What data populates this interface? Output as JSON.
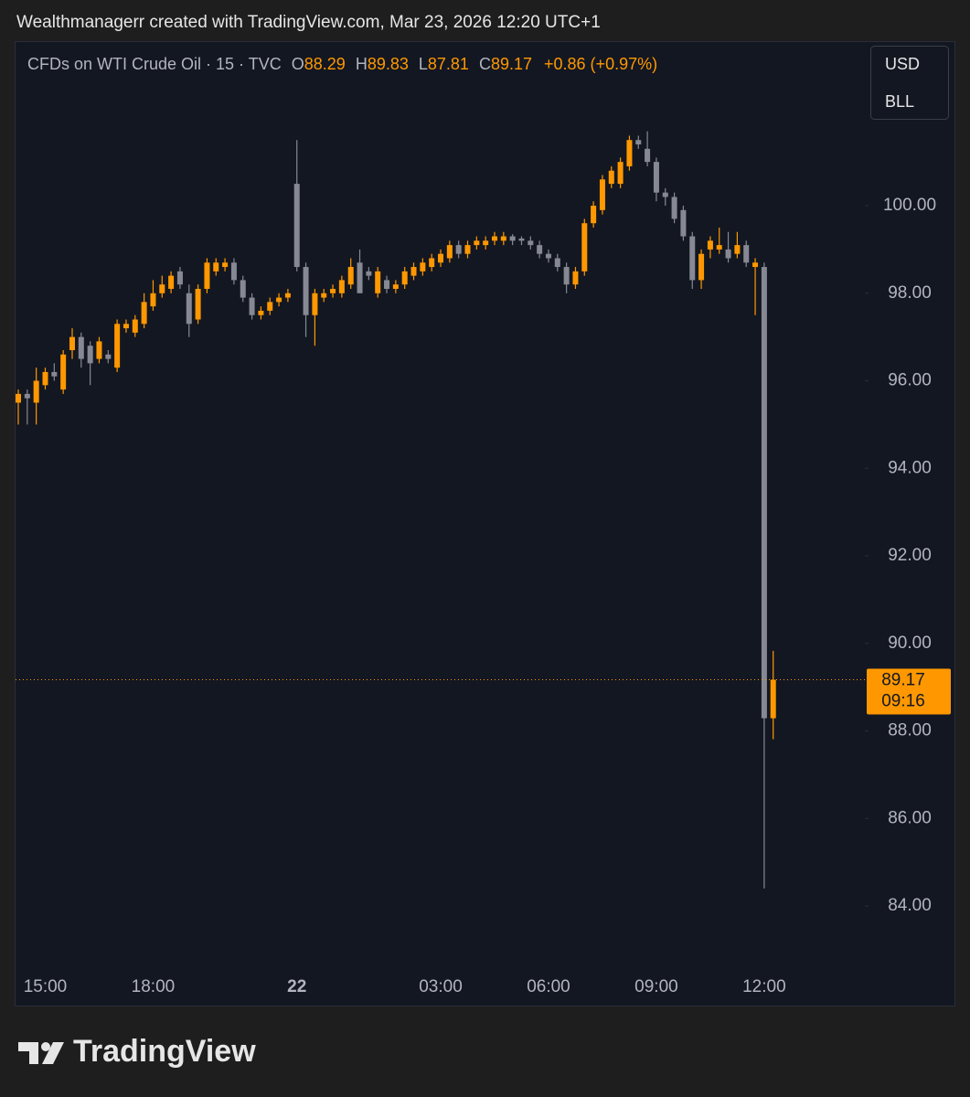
{
  "chart_data": {
    "type": "candlestick",
    "title": "Wealthmanagerr created with TradingView.com, Mar 23, 2026 12:20 UTC+1",
    "symbol": "CFDs on WTI Crude Oil · 15 · TVC",
    "legend_labels": [
      "O",
      "H",
      "L",
      "C"
    ],
    "change": "+0.86 (+0.97%)",
    "currency": "USD",
    "unit": "BLL",
    "countdown": "09:16",
    "up_color": "#ff9800",
    "down_color": "#868993",
    "ylim": [
      82.56,
      103.76
    ],
    "yticks": [
      {
        "value": 84,
        "label": "84.00"
      },
      {
        "value": 86,
        "label": "86.00"
      },
      {
        "value": 88,
        "label": "88.00"
      },
      {
        "value": 90,
        "label": "90.00"
      },
      {
        "value": 92,
        "label": "92.00"
      },
      {
        "value": 94,
        "label": "94.00"
      },
      {
        "value": 96,
        "label": "96.00"
      },
      {
        "value": 98,
        "label": "98.00"
      },
      {
        "value": 100,
        "label": "100.00"
      }
    ],
    "categories": [
      null,
      null,
      null,
      "15:00",
      null,
      null,
      null,
      null,
      null,
      null,
      null,
      null,
      null,
      null,
      null,
      "18:00",
      null,
      null,
      null,
      null,
      null,
      null,
      null,
      null,
      null,
      null,
      null,
      null,
      null,
      null,
      null,
      "22",
      null,
      null,
      null,
      null,
      null,
      null,
      null,
      null,
      null,
      null,
      null,
      null,
      null,
      null,
      null,
      "03:00",
      null,
      null,
      null,
      null,
      null,
      null,
      null,
      null,
      null,
      null,
      null,
      "06:00",
      null,
      null,
      null,
      null,
      null,
      null,
      null,
      null,
      null,
      null,
      null,
      "09:00",
      null,
      null,
      null,
      null,
      null,
      null,
      null,
      null,
      null,
      null,
      null,
      "12:00",
      null
    ],
    "open": [
      95.5,
      95.7,
      95.5,
      95.9,
      96.2,
      95.8,
      96.7,
      97.0,
      96.8,
      96.5,
      96.6,
      96.3,
      97.2,
      97.1,
      97.3,
      97.7,
      98.0,
      98.1,
      98.5,
      98.0,
      97.4,
      98.1,
      98.5,
      98.6,
      98.7,
      98.3,
      97.9,
      97.5,
      97.6,
      97.8,
      97.9,
      100.5,
      98.6,
      97.5,
      97.9,
      98.0,
      98.0,
      98.2,
      98.7,
      98.5,
      98.0,
      98.3,
      98.1,
      98.2,
      98.4,
      98.5,
      98.6,
      98.7,
      98.8,
      99.1,
      98.9,
      99.1,
      99.1,
      99.2,
      99.2,
      99.3,
      99.25,
      99.2,
      99.1,
      98.9,
      98.8,
      98.6,
      98.2,
      98.5,
      99.6,
      99.9,
      100.5,
      100.5,
      100.9,
      101.5,
      101.3,
      101.0,
      100.3,
      100.2,
      99.9,
      99.3,
      98.3,
      99.0,
      99.0,
      99.0,
      98.9,
      99.1,
      98.6,
      98.6,
      88.29
    ],
    "high": [
      95.8,
      95.8,
      96.3,
      96.3,
      96.4,
      96.7,
      97.2,
      97.1,
      96.9,
      97.0,
      96.7,
      97.4,
      97.4,
      97.5,
      98.0,
      98.3,
      98.4,
      98.5,
      98.6,
      98.2,
      98.2,
      98.8,
      98.8,
      98.8,
      98.8,
      98.4,
      98.0,
      97.7,
      97.9,
      98.0,
      98.1,
      101.5,
      98.7,
      98.1,
      98.1,
      98.2,
      98.4,
      98.8,
      99.0,
      98.6,
      98.6,
      98.4,
      98.3,
      98.6,
      98.7,
      98.8,
      98.9,
      99.0,
      99.2,
      99.2,
      99.2,
      99.3,
      99.3,
      99.4,
      99.4,
      99.35,
      99.3,
      99.3,
      99.2,
      99.0,
      98.9,
      98.7,
      98.6,
      99.7,
      100.1,
      100.7,
      100.9,
      101.1,
      101.6,
      101.6,
      101.7,
      101.1,
      100.4,
      100.3,
      100.0,
      99.4,
      99.0,
      99.3,
      99.5,
      99.4,
      99.4,
      99.2,
      98.8,
      98.7,
      89.83
    ],
    "low": [
      95.0,
      95.0,
      95.0,
      95.8,
      96.0,
      95.7,
      96.5,
      96.3,
      95.9,
      96.4,
      96.4,
      96.2,
      97.1,
      97.0,
      97.2,
      97.6,
      97.9,
      98.0,
      98.1,
      97.0,
      97.3,
      98.0,
      98.4,
      98.5,
      98.2,
      97.8,
      97.4,
      97.4,
      97.5,
      97.7,
      97.8,
      98.5,
      97.0,
      96.8,
      97.8,
      97.9,
      97.9,
      98.1,
      98.0,
      98.3,
      97.9,
      98.0,
      98.0,
      98.1,
      98.3,
      98.4,
      98.5,
      98.6,
      98.7,
      98.8,
      98.8,
      99.0,
      99.0,
      99.1,
      99.1,
      99.1,
      99.1,
      99.0,
      98.8,
      98.7,
      98.5,
      98.0,
      98.1,
      98.4,
      99.5,
      99.8,
      100.4,
      100.4,
      100.8,
      101.3,
      100.9,
      100.1,
      100.0,
      99.6,
      99.2,
      98.1,
      98.1,
      98.8,
      98.9,
      98.7,
      98.8,
      98.6,
      97.5,
      84.4,
      87.81
    ],
    "close": [
      95.7,
      95.6,
      96.0,
      96.2,
      96.1,
      96.6,
      97.0,
      96.5,
      96.4,
      96.9,
      96.5,
      97.3,
      97.3,
      97.4,
      97.8,
      98.0,
      98.2,
      98.4,
      98.2,
      97.3,
      98.1,
      98.7,
      98.7,
      98.7,
      98.3,
      97.9,
      97.5,
      97.6,
      97.8,
      97.9,
      98.0,
      98.6,
      97.5,
      98.0,
      98.0,
      98.1,
      98.3,
      98.6,
      98.0,
      98.4,
      98.5,
      98.1,
      98.2,
      98.5,
      98.6,
      98.7,
      98.8,
      98.9,
      99.1,
      98.9,
      99.1,
      99.2,
      99.2,
      99.3,
      99.3,
      99.2,
      99.2,
      99.1,
      98.9,
      98.8,
      98.6,
      98.2,
      98.5,
      99.6,
      100.0,
      100.6,
      100.8,
      101.0,
      101.5,
      101.4,
      101.0,
      100.3,
      100.2,
      99.7,
      99.3,
      98.3,
      98.9,
      99.2,
      99.1,
      98.8,
      99.1,
      98.7,
      98.7,
      88.29,
      89.17
    ]
  },
  "footer": {
    "brand": "TradingView"
  }
}
